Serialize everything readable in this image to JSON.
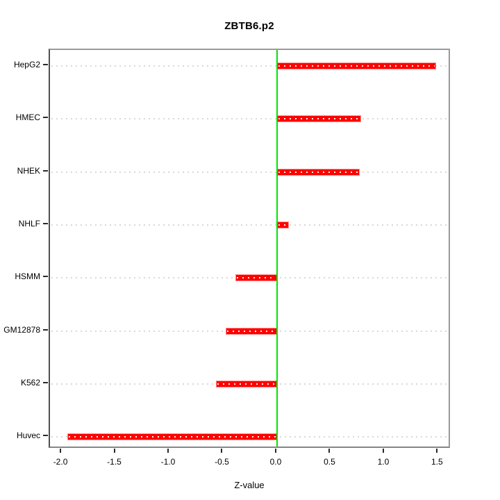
{
  "chart_data": {
    "type": "bar",
    "orientation": "horizontal",
    "title": "ZBTB6.p2",
    "xlabel": "Z-value",
    "ylabel": "",
    "categories": [
      "HepG2",
      "HMEC",
      "NHEK",
      "NHLF",
      "HSMM",
      "GM12878",
      "K562",
      "Huvec"
    ],
    "values": [
      1.48,
      0.78,
      0.77,
      0.11,
      -0.39,
      -0.48,
      -0.57,
      -1.95
    ],
    "xlim": [
      -2.11,
      1.62
    ],
    "xticks": [
      -2.0,
      -1.5,
      -1.0,
      -0.5,
      0.0,
      0.5,
      1.0,
      1.5
    ],
    "xtick_labels": [
      "-2.0",
      "-1.5",
      "-1.0",
      "-0.5",
      "0.0",
      "0.5",
      "1.0",
      "1.5"
    ],
    "grid": "horizontal dotted lines at each category",
    "legend": null,
    "zero_reference_line": 0,
    "colors": {
      "bar_fill": "#ff0000",
      "bar_edge": "#ff8a8a",
      "bar_center_dots": "#ffffff",
      "zero_line": "#00e400",
      "grid_line": "#d8d8d8",
      "box_border": "#9a9a9a",
      "tick": "#2a2a2a",
      "text": "#000000",
      "background": "#ffffff"
    }
  }
}
